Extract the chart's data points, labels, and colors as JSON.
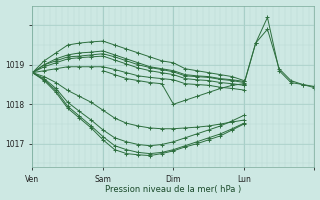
{
  "bg_color": "#cde8e3",
  "plot_bg_color": "#cde8e3",
  "grid_major_color": "#a8cfc8",
  "grid_minor_color": "#b8d8d2",
  "line_color": "#2d6e3e",
  "xlabel": "Pression niveau de la mer( hPa )",
  "ylim": [
    1016.4,
    1020.5
  ],
  "yticks": [
    1017,
    1018,
    1019
  ],
  "xlim": [
    0,
    144
  ],
  "xtick_positions": [
    0,
    36,
    72,
    108,
    144
  ],
  "xtick_labels": [
    "Ven",
    "Sam",
    "Dim",
    "Lun",
    ""
  ],
  "figsize": [
    3.2,
    2.0
  ],
  "dpi": 100,
  "series": [
    {
      "x": [
        0,
        6,
        12,
        18,
        24,
        30,
        36,
        42,
        48,
        54,
        60,
        66,
        72,
        78,
        84,
        90,
        96,
        102,
        108
      ],
      "y": [
        1018.8,
        1019.1,
        1019.3,
        1019.5,
        1019.55,
        1019.58,
        1019.6,
        1019.5,
        1019.4,
        1019.3,
        1019.2,
        1019.1,
        1019.05,
        1018.9,
        1018.85,
        1018.8,
        1018.75,
        1018.7,
        1018.6
      ]
    },
    {
      "x": [
        0,
        6,
        12,
        18,
        24,
        30,
        36,
        42,
        48,
        54,
        60,
        66,
        72,
        78,
        84,
        90,
        96,
        102,
        108
      ],
      "y": [
        1018.8,
        1019.0,
        1019.15,
        1019.25,
        1019.3,
        1019.32,
        1019.35,
        1019.25,
        1019.15,
        1019.05,
        1018.95,
        1018.9,
        1018.85,
        1018.75,
        1018.72,
        1018.7,
        1018.65,
        1018.62,
        1018.58
      ]
    },
    {
      "x": [
        0,
        6,
        12,
        18,
        24,
        30,
        36,
        42,
        48,
        54,
        60,
        66,
        72,
        78,
        84,
        90,
        96,
        102,
        108
      ],
      "y": [
        1018.8,
        1019.0,
        1019.1,
        1019.2,
        1019.22,
        1019.25,
        1019.28,
        1019.2,
        1019.1,
        1019.0,
        1018.93,
        1018.88,
        1018.82,
        1018.72,
        1018.7,
        1018.68,
        1018.63,
        1018.6,
        1018.55
      ]
    },
    {
      "x": [
        0,
        6,
        12,
        18,
        24,
        30,
        36,
        42,
        48,
        54,
        60,
        66,
        72,
        78,
        84,
        90,
        96,
        102,
        108
      ],
      "y": [
        1018.8,
        1018.95,
        1019.05,
        1019.15,
        1019.18,
        1019.2,
        1019.22,
        1019.12,
        1019.02,
        1018.92,
        1018.85,
        1018.8,
        1018.75,
        1018.65,
        1018.62,
        1018.6,
        1018.55,
        1018.52,
        1018.48
      ]
    },
    {
      "x": [
        0,
        6,
        12,
        18,
        24,
        30,
        36,
        42,
        48,
        54,
        60,
        66,
        72,
        78,
        84,
        90,
        96,
        102,
        108
      ],
      "y": [
        1018.8,
        1018.85,
        1018.9,
        1018.95,
        1018.95,
        1018.95,
        1018.95,
        1018.88,
        1018.8,
        1018.72,
        1018.68,
        1018.65,
        1018.62,
        1018.52,
        1018.5,
        1018.48,
        1018.43,
        1018.4,
        1018.36
      ]
    },
    {
      "x": [
        0,
        6,
        12,
        18,
        24,
        30,
        36,
        42,
        48,
        54,
        60,
        66,
        72,
        78,
        84,
        90,
        96,
        102,
        108
      ],
      "y": [
        1018.8,
        1018.7,
        1018.55,
        1018.35,
        1018.2,
        1018.05,
        1017.85,
        1017.65,
        1017.52,
        1017.45,
        1017.4,
        1017.38,
        1017.38,
        1017.4,
        1017.42,
        1017.45,
        1017.5,
        1017.55,
        1017.6
      ]
    },
    {
      "x": [
        0,
        6,
        12,
        18,
        24,
        30,
        36,
        42,
        48,
        54,
        60,
        66,
        72,
        78,
        84,
        90,
        96,
        102,
        108
      ],
      "y": [
        1018.8,
        1018.6,
        1018.3,
        1017.9,
        1017.65,
        1017.4,
        1017.1,
        1016.85,
        1016.75,
        1016.72,
        1016.7,
        1016.75,
        1016.82,
        1016.92,
        1017.0,
        1017.1,
        1017.2,
        1017.35,
        1017.5
      ]
    },
    {
      "x": [
        0,
        6,
        12,
        18,
        24,
        30,
        36,
        42,
        48,
        54,
        60,
        66,
        72,
        78,
        84,
        90,
        96,
        102,
        108
      ],
      "y": [
        1018.8,
        1018.62,
        1018.35,
        1017.95,
        1017.7,
        1017.45,
        1017.18,
        1016.95,
        1016.85,
        1016.78,
        1016.75,
        1016.78,
        1016.85,
        1016.95,
        1017.05,
        1017.15,
        1017.25,
        1017.38,
        1017.52
      ]
    },
    {
      "x": [
        0,
        6,
        12,
        18,
        24,
        30,
        36,
        42,
        48,
        54,
        60,
        66,
        72,
        78,
        84,
        90,
        96,
        102,
        108
      ],
      "y": [
        1018.8,
        1018.65,
        1018.4,
        1018.05,
        1017.82,
        1017.6,
        1017.35,
        1017.15,
        1017.05,
        1016.98,
        1016.95,
        1016.98,
        1017.05,
        1017.15,
        1017.25,
        1017.35,
        1017.45,
        1017.58,
        1017.72
      ]
    }
  ],
  "ext_series": [
    {
      "x": [
        36,
        42,
        48,
        54,
        60,
        66,
        72,
        78,
        84,
        90,
        96,
        102,
        108,
        114,
        120,
        126,
        132,
        138,
        144
      ],
      "y": [
        1018.85,
        1018.75,
        1018.65,
        1018.6,
        1018.55,
        1018.52,
        1018.0,
        1018.1,
        1018.2,
        1018.3,
        1018.4,
        1018.48,
        1018.52,
        1019.55,
        1019.9,
        1018.9,
        1018.6,
        1018.5,
        1018.45
      ]
    },
    {
      "x": [
        108,
        114,
        120,
        126,
        132,
        138,
        144
      ],
      "y": [
        1018.5,
        1019.55,
        1020.2,
        1018.85,
        1018.55,
        1018.5,
        1018.42
      ]
    }
  ]
}
